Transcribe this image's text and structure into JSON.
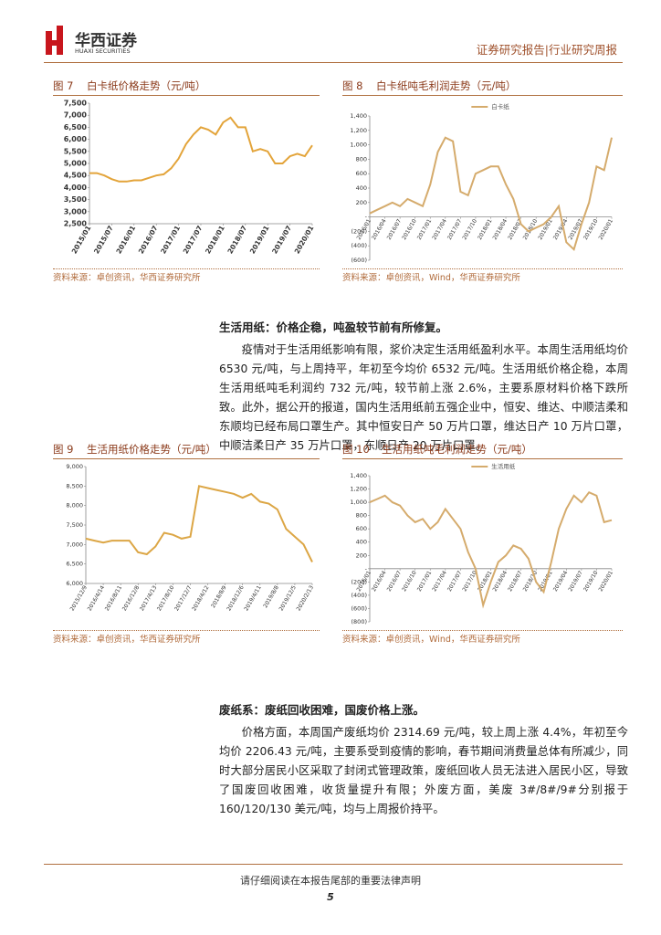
{
  "header": {
    "brand": "华西证券",
    "brand_en": "HUAXI SECURITIES",
    "report_type": "证券研究报告|行业研究周报"
  },
  "figures": [
    {
      "label": "图 7",
      "title": "白卡纸价格走势（元/吨）",
      "source": "资料来源：卓创资讯，华西证券研究所",
      "chart_data": {
        "type": "line",
        "categories": [
          "2015/01",
          null,
          null,
          "2015/07",
          null,
          null,
          "2016/01",
          null,
          null,
          "2016/07",
          null,
          null,
          "2017/01",
          null,
          null,
          "2017/07",
          null,
          null,
          "2018/01",
          null,
          null,
          "2018/07",
          null,
          null,
          "2019/01",
          null,
          null,
          "2019/07",
          null,
          null,
          "2020/01"
        ],
        "series": [
          {
            "color": "#e3a43a",
            "values": [
              4600,
              4600,
              4500,
              4350,
              4250,
              4250,
              4300,
              4300,
              4400,
              4500,
              4550,
              4800,
              5200,
              5800,
              6200,
              6500,
              6400,
              6200,
              6700,
              6900,
              6500,
              6500,
              5500,
              5600,
              5500,
              5000,
              5000,
              5300,
              5400,
              5300,
              5750
            ]
          }
        ],
        "ylim": [
          2500,
          7500
        ],
        "yticks": [
          {
            "value": 2500,
            "label": "2,500"
          },
          {
            "value": 3000,
            "label": "3,000"
          },
          {
            "value": 3500,
            "label": "3,500"
          },
          {
            "value": 4000,
            "label": "4,000"
          },
          {
            "value": 4500,
            "label": "4,500"
          },
          {
            "value": 5000,
            "label": "5,000"
          },
          {
            "value": 5500,
            "label": "5,500"
          },
          {
            "value": 6000,
            "label": "6,000"
          },
          {
            "value": 6500,
            "label": "6,500"
          },
          {
            "value": 7000,
            "label": "7,000"
          },
          {
            "value": 7500,
            "label": "7,500"
          }
        ],
        "grid": false
      }
    },
    {
      "label": "图 8",
      "title": "白卡纸吨毛利润走势（元/吨）",
      "source": "资料来源：卓创资讯，Wind，华西证券研究所",
      "chart_data": {
        "type": "line",
        "categories": [
          "2016/01",
          null,
          "2016/04",
          null,
          "2016/07",
          null,
          "2016/10",
          null,
          "2017/01",
          null,
          "2017/04",
          null,
          "2017/07",
          null,
          "2017/10",
          null,
          "2018/01",
          null,
          "2018/04",
          null,
          "2018/07",
          null,
          "2018/10",
          null,
          "2019/01",
          null,
          "2019/04",
          null,
          "2019/07",
          null,
          "2019/10",
          null,
          "2020/01"
        ],
        "series": [
          {
            "name": "白卡纸",
            "color": "#d5ab6c",
            "values": [
              50,
              100,
              150,
              200,
              150,
              250,
              200,
              150,
              450,
              900,
              1100,
              1050,
              350,
              300,
              600,
              650,
              700,
              700,
              450,
              250,
              -100,
              -200,
              -150,
              -100,
              0,
              150,
              -350,
              -450,
              -100,
              200,
              700,
              650,
              1100
            ]
          }
        ],
        "ylim": [
          -600,
          1400
        ],
        "yticks": [
          {
            "value": 1400,
            "label": "1,400"
          },
          {
            "value": 1200,
            "label": "1,200"
          },
          {
            "value": 1000,
            "label": "1,000"
          },
          800,
          600,
          400,
          200,
          {
            "value": 0,
            "label": "-"
          },
          {
            "value": -200,
            "label": "(200)"
          },
          {
            "value": -400,
            "label": "(400)"
          },
          {
            "value": -600,
            "label": "(600)"
          }
        ],
        "grid": false
      }
    },
    {
      "label": "图 9",
      "title": "生活用纸价格走势（元/吨）",
      "source": "资料来源：卓创资讯，华西证券研究所",
      "chart_data": {
        "type": "line",
        "categories": [
          "2015/12/9",
          null,
          "2016/4/14",
          null,
          "2016/8/11",
          null,
          "2016/12/8",
          null,
          "2017/4/13",
          null,
          "2017/8/10",
          null,
          "2017/12/7",
          null,
          "2018/4/12",
          null,
          "2018/8/9",
          null,
          "2018/12/6",
          null,
          "2019/4/11",
          null,
          "2019/8/8",
          null,
          "2019/12/5",
          null,
          "2020/2/13"
        ],
        "series": [
          {
            "color": "#dca645",
            "values": [
              7150,
              7100,
              7050,
              7100,
              7100,
              7100,
              6800,
              6750,
              6950,
              7300,
              7250,
              7150,
              7200,
              8500,
              8450,
              8400,
              8350,
              8300,
              8200,
              8300,
              8100,
              8050,
              7900,
              7400,
              7200,
              7000,
              6550
            ]
          }
        ],
        "ylim": [
          6000,
          9000
        ],
        "yticks": [
          {
            "value": 6000,
            "label": "6,000"
          },
          {
            "value": 6500,
            "label": "6,500"
          },
          {
            "value": 7000,
            "label": "7,000"
          },
          {
            "value": 7500,
            "label": "7,500"
          },
          {
            "value": 8000,
            "label": "8,000"
          },
          {
            "value": 8500,
            "label": "8,500"
          },
          {
            "value": 9000,
            "label": "9,000"
          }
        ],
        "grid": false
      }
    },
    {
      "label": "图 10",
      "title": "生活用纸吨毛利润走势（元/吨）",
      "source": "资料来源：卓创资讯，Wind，华西证券研究所",
      "chart_data": {
        "type": "line",
        "categories": [
          "2016/01",
          null,
          "2016/04",
          null,
          "2016/07",
          null,
          "2016/10",
          null,
          "2017/01",
          null,
          "2017/04",
          null,
          "2017/07",
          null,
          "2017/10",
          null,
          "2018/01",
          null,
          "2018/04",
          null,
          "2018/07",
          null,
          "2018/10",
          null,
          "2019/01",
          null,
          "2019/04",
          null,
          "2019/07",
          null,
          "2019/10",
          null,
          "2020/01"
        ],
        "series": [
          {
            "name": "生活用纸",
            "color": "#d5ab6c",
            "values": [
              1000,
              1050,
              1100,
              1000,
              950,
              800,
              700,
              750,
              600,
              700,
              900,
              750,
              600,
              250,
              0,
              -550,
              -200,
              100,
              200,
              350,
              300,
              150,
              -200,
              -350,
              100,
              600,
              900,
              1100,
              1000,
              1150,
              1100,
              700,
              730
            ]
          }
        ],
        "ylim": [
          -800,
          1400
        ],
        "yticks": [
          {
            "value": 1400,
            "label": "1,400"
          },
          {
            "value": 1200,
            "label": "1,200"
          },
          {
            "value": 1000,
            "label": "1,000"
          },
          800,
          600,
          400,
          200,
          {
            "value": 0,
            "label": "-"
          },
          {
            "value": -200,
            "label": "(200)"
          },
          {
            "value": -400,
            "label": "(400)"
          },
          {
            "value": -600,
            "label": "(600)"
          },
          {
            "value": -800,
            "label": "(800)"
          }
        ],
        "grid": false
      }
    }
  ],
  "sections": [
    {
      "heading": "生活用纸：价格企稳，吨盈较节前有所修复。",
      "paragraph": "疫情对于生活用纸影响有限，浆价决定生活用纸盈利水平。本周生活用纸均价 6530 元/吨，与上周持平，年初至今均价 6532 元/吨。生活用纸价格企稳，本周生活用纸吨毛利润约 732 元/吨，较节前上涨 2.6%，主要系原材料价格下跌所致。此外，据公开的报道，国内生活用纸前五强企业中，恒安、维达、中顺洁柔和东顺均已经布局口罩生产。其中恒安日产 50 万片口罩，维达日产 10 万片口罩，中顺洁柔日产 35 万片口罩，东顺日产 20 万片口罩。"
    },
    {
      "heading": "废纸系：废纸回收困难，国废价格上涨。",
      "paragraph": "价格方面，本周国产废纸均价 2314.69 元/吨，较上周上涨 4.4%，年初至今均价 2206.43 元/吨，主要系受到疫情的影响，春节期间消费量总体有所减少，同时大部分居民小区采取了封闭式管理政策，废纸回收人员无法进入居民小区，导致了国废回收困难，收货量提升有限；外废方面，美废 3#/8#/9#分别报于 160/120/130 美元/吨，均与上周报价持平。"
    }
  ],
  "footer": {
    "notice": "请仔细阅读在本报告尾部的重要法律声明",
    "page": "5"
  }
}
